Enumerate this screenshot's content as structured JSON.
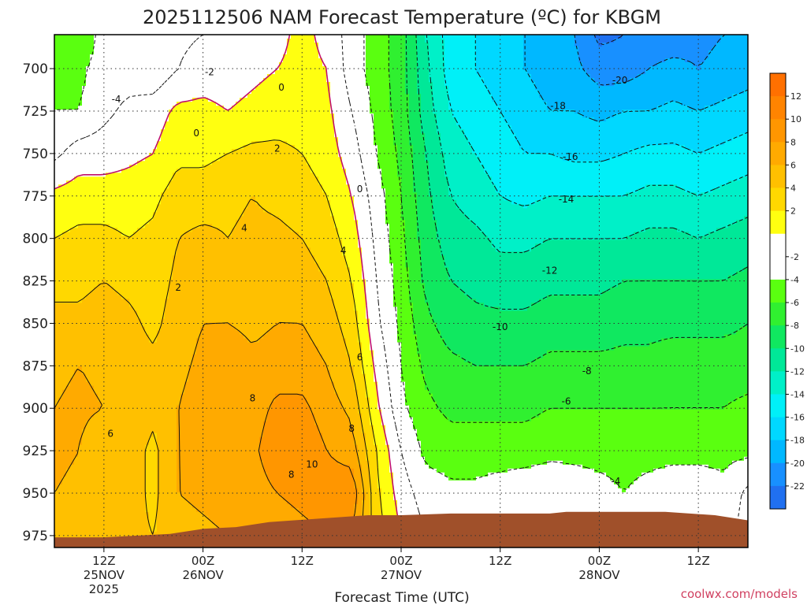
{
  "chart_data": {
    "type": "heatmap",
    "title": "2025112506 NAM Forecast Temperature (ºC) for KBGM",
    "xlabel": "Forecast Time (UTC)",
    "ylabel": "",
    "credit": "coolwx.com/models",
    "y_axis": {
      "unit": "hPa",
      "inverted": true,
      "range": [
        680,
        982
      ],
      "ticks": [
        700,
        725,
        750,
        775,
        800,
        825,
        850,
        875,
        900,
        925,
        950,
        975
      ]
    },
    "x_axis": {
      "unit": "hours from 2025-11-25 06Z",
      "range": [
        0,
        84
      ],
      "ticks": [
        {
          "hour": 6,
          "labels": [
            "12Z",
            "25NOV",
            "2025"
          ]
        },
        {
          "hour": 18,
          "labels": [
            "00Z",
            "26NOV"
          ]
        },
        {
          "hour": 30,
          "labels": [
            "12Z"
          ]
        },
        {
          "hour": 42,
          "labels": [
            "00Z",
            "27NOV"
          ]
        },
        {
          "hour": 54,
          "labels": [
            "12Z"
          ]
        },
        {
          "hour": 66,
          "labels": [
            "00Z",
            "28NOV"
          ]
        },
        {
          "hour": 78,
          "labels": [
            "12Z"
          ]
        }
      ]
    },
    "grid": true,
    "colorbar": {
      "placement": "right",
      "min": -24,
      "max": 14,
      "step": 2,
      "tick_labels": [
        12,
        10,
        8,
        6,
        4,
        2,
        -2,
        -4,
        -6,
        -8,
        -10,
        -12,
        -14,
        -16,
        -18,
        -20,
        -22
      ],
      "colors": {
        "14": "#ff7000",
        "12": "#ff8400",
        "10": "#ff9600",
        "8": "#ffaa00",
        "6": "#ffc000",
        "4": "#ffd800",
        "2": "#ffff10",
        "0": "#ffffff",
        "-2": "#ffffff",
        "-4": "#5aff10",
        "-6": "#30f030",
        "-8": "#10e860",
        "-10": "#00e898",
        "-12": "#00f0c8",
        "-14": "#00f0f8",
        "-16": "#00d8ff",
        "-18": "#00b8ff",
        "-20": "#1890ff",
        "-22": "#2070f0",
        "-24": "#1048f0"
      }
    },
    "ground_color": "#a0502a",
    "freezing_line_color": "#c0106a",
    "surface_pressure": [
      [
        0,
        976
      ],
      [
        6,
        976
      ],
      [
        14,
        974
      ],
      [
        18,
        971
      ],
      [
        22,
        970
      ],
      [
        26,
        967
      ],
      [
        32,
        965
      ],
      [
        38,
        963
      ],
      [
        42,
        963
      ],
      [
        48,
        962
      ],
      [
        54,
        962
      ],
      [
        60,
        962
      ],
      [
        62,
        961
      ],
      [
        68,
        961
      ],
      [
        74,
        961
      ],
      [
        80,
        963
      ],
      [
        84,
        966
      ]
    ],
    "field_hours": [
      0,
      3,
      6,
      9,
      12,
      15,
      18,
      21,
      24,
      27,
      30,
      33,
      36,
      39,
      42,
      45,
      48,
      51,
      54,
      57,
      60,
      63,
      66,
      69,
      72,
      75,
      78,
      81,
      84
    ],
    "field_levels": [
      680,
      700,
      725,
      750,
      775,
      800,
      825,
      850,
      875,
      900,
      925,
      950,
      975
    ],
    "temperature_c": [
      [
        -4.5,
        -6.0,
        -3.0,
        -3.5,
        -4.0,
        -2.5,
        -2.0,
        -1.5,
        -1.0,
        -0.5,
        0.5,
        -0.5,
        -3.0,
        -5.0,
        -7.0,
        -12.0,
        -15.0,
        -16.0,
        -17.0,
        -18.0,
        -19.0,
        -20.0,
        -22.5,
        -22.0,
        -21.0,
        -21.0,
        -20.5,
        -20.0,
        -20.0
      ],
      [
        -4.5,
        -4.5,
        -3.0,
        -3.0,
        -3.5,
        -2.0,
        -1.0,
        -1.0,
        -0.5,
        0.0,
        0.5,
        0.0,
        -3.0,
        -5.0,
        -7.0,
        -11.5,
        -15.0,
        -16.0,
        -17.0,
        -18.0,
        -19.0,
        -19.5,
        -21.0,
        -21.0,
        -20.0,
        -19.5,
        -20.0,
        -19.5,
        -19.0
      ],
      [
        -4.0,
        -4.0,
        -2.5,
        -1.5,
        -1.0,
        0.5,
        0.5,
        0.0,
        0.5,
        1.0,
        1.0,
        0.5,
        -2.0,
        -4.5,
        -7.0,
        -11.0,
        -14.0,
        -15.0,
        -16.0,
        -17.0,
        -18.0,
        -18.0,
        -18.5,
        -18.0,
        -18.0,
        -17.5,
        -18.0,
        -17.5,
        -17.0
      ],
      [
        -2.5,
        -1.0,
        -1.0,
        -0.5,
        0.0,
        1.5,
        1.5,
        2.0,
        2.5,
        2.5,
        2.0,
        1.0,
        -1.0,
        -4.0,
        -6.5,
        -10.0,
        -13.0,
        -14.0,
        -15.0,
        -16.0,
        -16.0,
        -16.5,
        -16.5,
        -16.0,
        -15.5,
        -15.5,
        -16.0,
        -15.5,
        -15.0
      ],
      [
        0.5,
        1.0,
        1.0,
        1.0,
        1.5,
        3.0,
        3.0,
        3.5,
        4.0,
        3.5,
        3.0,
        2.0,
        0.0,
        -3.0,
        -6.0,
        -9.5,
        -12.0,
        -13.0,
        -14.0,
        -14.5,
        -14.0,
        -14.0,
        -14.0,
        -14.0,
        -13.5,
        -13.5,
        -14.0,
        -13.5,
        -13.0
      ],
      [
        2.0,
        2.5,
        2.5,
        2.0,
        2.5,
        4.0,
        4.5,
        4.0,
        4.5,
        4.5,
        4.0,
        3.0,
        1.0,
        -2.5,
        -5.5,
        -9.0,
        -11.0,
        -11.5,
        -12.5,
        -12.5,
        -12.0,
        -12.0,
        -12.0,
        -12.0,
        -11.5,
        -11.5,
        -12.0,
        -11.5,
        -11.0
      ],
      [
        3.5,
        3.5,
        4.0,
        3.5,
        3.0,
        4.5,
        5.0,
        5.0,
        5.0,
        5.5,
        5.0,
        4.0,
        2.0,
        -2.0,
        -5.0,
        -8.5,
        -10.0,
        -10.5,
        -11.0,
        -11.0,
        -10.5,
        -10.5,
        -10.5,
        -10.0,
        -10.0,
        -10.0,
        -10.0,
        -10.0,
        -9.5
      ],
      [
        4.5,
        4.5,
        5.0,
        4.5,
        3.5,
        5.0,
        6.0,
        6.0,
        5.5,
        6.0,
        6.0,
        5.0,
        3.0,
        -1.5,
        -4.5,
        -7.5,
        -9.0,
        -9.5,
        -9.5,
        -9.5,
        -9.0,
        -9.0,
        -9.0,
        -8.5,
        -8.5,
        -8.5,
        -8.5,
        -8.5,
        -8.0
      ],
      [
        5.5,
        6.0,
        5.5,
        5.0,
        4.5,
        5.5,
        6.5,
        7.5,
        6.5,
        7.0,
        7.0,
        6.0,
        4.0,
        -0.5,
        -4.0,
        -6.5,
        -7.5,
        -8.0,
        -8.0,
        -8.0,
        -7.5,
        -7.5,
        -7.5,
        -7.5,
        -7.5,
        -7.0,
        -7.0,
        -7.0,
        -7.0
      ],
      [
        6.0,
        6.5,
        6.0,
        5.5,
        4.5,
        6.0,
        7.0,
        8.0,
        7.0,
        8.5,
        8.5,
        7.0,
        5.5,
        0.5,
        -3.5,
        -5.5,
        -6.5,
        -6.5,
        -6.5,
        -6.5,
        -6.0,
        -6.0,
        -6.0,
        -6.0,
        -6.0,
        -6.0,
        -6.0,
        -6.0,
        -5.5
      ],
      [
        6.5,
        6.0,
        4.0,
        5.0,
        3.5,
        6.0,
        7.0,
        7.5,
        7.5,
        9.5,
        9.5,
        8.0,
        7.0,
        2.0,
        -2.0,
        -4.5,
        -5.0,
        -5.0,
        -5.0,
        -5.0,
        -4.5,
        -4.5,
        -4.5,
        -4.5,
        -4.5,
        -4.5,
        -4.5,
        -4.5,
        -4.5
      ],
      [
        6.0,
        5.5,
        5.0,
        5.0,
        3.5,
        6.0,
        6.5,
        7.0,
        7.0,
        8.0,
        8.5,
        9.0,
        9.5,
        2.5,
        -1.0,
        -3.0,
        -3.5,
        -3.5,
        -3.0,
        -2.5,
        -2.5,
        -3.0,
        -3.5,
        -4.0,
        -3.5,
        -3.0,
        -3.0,
        -3.5,
        -1.5
      ],
      [
        5.0,
        5.0,
        4.5,
        4.5,
        4.0,
        5.0,
        5.5,
        6.0,
        6.5,
        7.0,
        7.5,
        8.0,
        8.0,
        3.0,
        0.0,
        -2.0,
        -3.0,
        -3.0,
        -2.5,
        -2.0,
        -2.0,
        -2.5,
        -3.0,
        -3.5,
        -3.0,
        -2.5,
        -2.5,
        -3.0,
        -1.0
      ]
    ],
    "contour_labels": [
      {
        "text": "-2",
        "hour": 18.8,
        "p": 702
      },
      {
        "text": "-4",
        "hour": 7.5,
        "p": 718
      },
      {
        "text": "0",
        "hour": 17.2,
        "p": 738
      },
      {
        "text": "0",
        "hour": 27.5,
        "p": 711
      },
      {
        "text": "2",
        "hour": 27.0,
        "p": 747
      },
      {
        "text": "0",
        "hour": 37.0,
        "p": 771
      },
      {
        "text": "4",
        "hour": 23.0,
        "p": 794
      },
      {
        "text": "4",
        "hour": 35.0,
        "p": 807
      },
      {
        "text": "2",
        "hour": 15.0,
        "p": 829
      },
      {
        "text": "6",
        "hour": 37.0,
        "p": 870
      },
      {
        "text": "8",
        "hour": 24.0,
        "p": 894
      },
      {
        "text": "6",
        "hour": 6.8,
        "p": 915
      },
      {
        "text": "8",
        "hour": 36.0,
        "p": 912
      },
      {
        "text": "10",
        "hour": 31.2,
        "p": 933
      },
      {
        "text": "8",
        "hour": 28.7,
        "p": 939
      },
      {
        "text": "-18",
        "hour": 61.0,
        "p": 722
      },
      {
        "text": "-20",
        "hour": 68.5,
        "p": 707
      },
      {
        "text": "-16",
        "hour": 62.5,
        "p": 752
      },
      {
        "text": "-14",
        "hour": 62.0,
        "p": 777
      },
      {
        "text": "-12",
        "hour": 60.0,
        "p": 819
      },
      {
        "text": "-10",
        "hour": 54.0,
        "p": 852
      },
      {
        "text": "-8",
        "hour": 64.5,
        "p": 878
      },
      {
        "text": "-6",
        "hour": 62.0,
        "p": 896
      },
      {
        "text": "-4",
        "hour": 68.0,
        "p": 943
      }
    ]
  }
}
